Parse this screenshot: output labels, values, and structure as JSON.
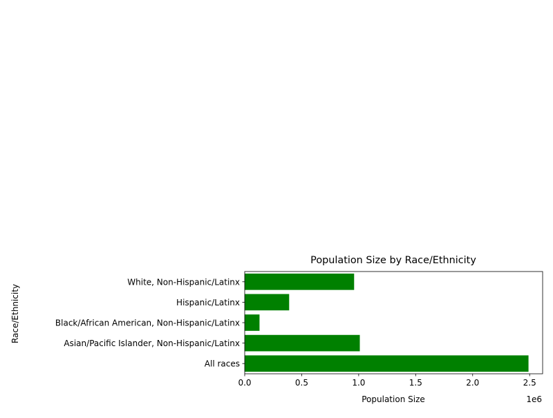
{
  "chart_data": {
    "type": "bar",
    "orientation": "horizontal",
    "title": "Population Size by Race/Ethnicity",
    "xlabel": "Population Size",
    "ylabel": "Race/Ethnicity",
    "x_offset_label": "1e6",
    "categories": [
      "All races",
      "Asian/Pacific Islander, Non-Hispanic/Latinx",
      "Black/African American, Non-Hispanic/Latinx",
      "Hispanic/Latinx",
      "White, Non-Hispanic/Latinx"
    ],
    "values": [
      2490000,
      1010000,
      130000,
      390000,
      960000
    ],
    "xlim": [
      0,
      2614000
    ],
    "xticks": [
      0,
      500000,
      1000000,
      1500000,
      2000000,
      2500000
    ],
    "xtick_labels": [
      "0.0",
      "0.5",
      "1.0",
      "1.5",
      "2.0",
      "2.5"
    ],
    "bar_color": "#008000",
    "grid": false,
    "legend": "none"
  }
}
